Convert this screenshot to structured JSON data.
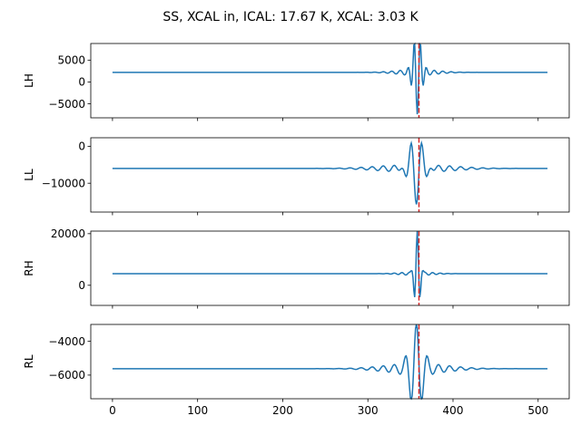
{
  "chart_data": {
    "type": "line",
    "title": "SS, XCAL in, ICAL: 17.67 K, XCAL: 3.03 K",
    "line_color": "#1f77b4",
    "marker_color": "#d62728",
    "xlim": [
      -25.5,
      536.5
    ],
    "x_ticks": [
      0,
      100,
      200,
      300,
      400,
      500
    ],
    "x_tick_labels": [
      "0",
      "100",
      "200",
      "300",
      "400",
      "500"
    ],
    "n_points": 512,
    "marker_x": 360,
    "subplots": [
      {
        "ylabel": "LH",
        "ylim": [
          -8200,
          8800
        ],
        "y_ticks": [
          -5000,
          0,
          5000
        ],
        "y_tick_labels": [
          "−5000",
          "0",
          "5000"
        ],
        "baseline": 2200,
        "pulses": [
          {
            "center": 358,
            "sigma": 4.5,
            "period": 7.5,
            "amp": -10300
          },
          {
            "center": 358,
            "sigma": 22,
            "period": 10,
            "amp": 700
          }
        ]
      },
      {
        "ylabel": "LL",
        "ylim": [
          -17800,
          2300
        ],
        "y_ticks": [
          -10000,
          0
        ],
        "y_tick_labels": [
          "−10000",
          "0"
        ],
        "baseline": -6000,
        "pulses": [
          {
            "center": 357,
            "sigma": 8,
            "period": 13,
            "amp": -10800
          },
          {
            "center": 357,
            "sigma": 40,
            "period": 13,
            "amp": 1100
          }
        ]
      },
      {
        "ylabel": "RH",
        "ylim": [
          -7800,
          21000
        ],
        "y_ticks": [
          0,
          20000
        ],
        "y_tick_labels": [
          "0",
          "20000"
        ],
        "baseline": 4500,
        "pulses": [
          {
            "center": 358,
            "sigma": 3,
            "period": 7,
            "amp": 16000
          },
          {
            "center": 358,
            "sigma": 18,
            "period": 9,
            "amp": 700
          }
        ]
      },
      {
        "ylabel": "RL",
        "ylim": [
          -7400,
          -3000
        ],
        "y_ticks": [
          -6000,
          -4000
        ],
        "y_tick_labels": [
          "−6000",
          "−4000"
        ],
        "baseline": -5620,
        "pulses": [
          {
            "center": 357,
            "sigma": 7,
            "period": 13,
            "amp": 2400
          },
          {
            "center": 357,
            "sigma": 35,
            "period": 13,
            "amp": 320
          }
        ]
      }
    ]
  }
}
